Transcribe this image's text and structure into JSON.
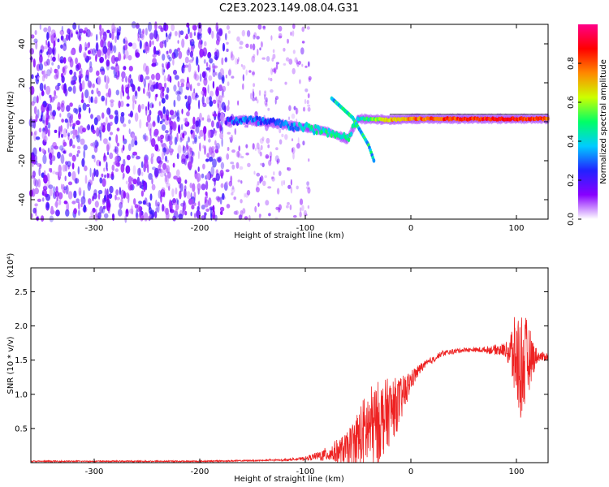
{
  "title": "C2E3.2023.149.08.04.G31",
  "colors": {
    "snr_line": "#ee2222",
    "frame": "#000000",
    "colormap": [
      "#ffffff",
      "#8800ff",
      "#2222ff",
      "#00ccff",
      "#00ff66",
      "#ccff00",
      "#ff8800",
      "#ff0000",
      "#ff0088"
    ]
  },
  "chart_data": [
    {
      "type": "heatmap",
      "xlabel": "Height of straight line (km)",
      "ylabel": "Frequency (Hz)",
      "xlim": [
        -360,
        130
      ],
      "ylim": [
        -50,
        50
      ],
      "xticks": [
        -300,
        -200,
        -100,
        0,
        100
      ],
      "yticks": [
        -40,
        -20,
        0,
        20,
        40
      ],
      "colorbar": {
        "label": "Normalized spectral amplitude",
        "range": [
          0,
          1
        ],
        "ticks": [
          0.0,
          0.2,
          0.4,
          0.6,
          0.8
        ]
      },
      "features": {
        "noise_region_km": [
          -360,
          -175
        ],
        "sparse_noise_km": [
          -175,
          -95
        ],
        "signal_track": [
          {
            "x": -175,
            "y": 0.0,
            "amp": 0.25
          },
          {
            "x": -160,
            "y": 1.0,
            "amp": 0.3
          },
          {
            "x": -140,
            "y": 0.0,
            "amp": 0.3
          },
          {
            "x": -120,
            "y": -1.5,
            "amp": 0.3
          },
          {
            "x": -100,
            "y": -3.0,
            "amp": 0.4
          },
          {
            "x": -80,
            "y": -5.0,
            "amp": 0.45
          },
          {
            "x": -60,
            "y": -9.0,
            "amp": 0.45
          },
          {
            "x": -50,
            "y": 1.5,
            "amp": 0.4
          },
          {
            "x": -20,
            "y": 1.0,
            "amp": 0.7
          },
          {
            "x": 0,
            "y": 1.5,
            "amp": 0.75
          },
          {
            "x": 50,
            "y": 1.5,
            "amp": 0.85
          },
          {
            "x": 100,
            "y": 1.5,
            "amp": 0.85
          },
          {
            "x": 130,
            "y": 1.5,
            "amp": 0.8
          }
        ],
        "diagonal_branch": [
          {
            "x": -75,
            "y": 12.0
          },
          {
            "x": -55,
            "y": 2.0
          },
          {
            "x": -40,
            "y": -12.0
          },
          {
            "x": -35,
            "y": -20.0
          }
        ]
      }
    },
    {
      "type": "line",
      "xlabel": "Height of straight line (km)",
      "ylabel": "SNR (10 * v/v)",
      "multiplier": "(x10⁴)",
      "xlim": [
        -360,
        130
      ],
      "ylim": [
        0,
        2.85
      ],
      "xticks": [
        -300,
        -200,
        -100,
        0,
        100
      ],
      "yticks": [
        0.5,
        1.0,
        1.5,
        2.0,
        2.5
      ],
      "series": [
        {
          "x": [
            -360,
            -300,
            -200,
            -150,
            -120,
            -100,
            -80,
            -60,
            -50,
            -40,
            -30,
            -20,
            -10,
            0,
            10,
            20,
            30,
            50,
            70,
            90,
            95,
            100,
            105,
            110,
            115,
            120,
            130
          ],
          "values": [
            0.02,
            0.02,
            0.02,
            0.03,
            0.04,
            0.06,
            0.12,
            0.2,
            0.35,
            0.5,
            0.6,
            0.75,
            0.9,
            1.2,
            1.4,
            1.5,
            1.6,
            1.65,
            1.65,
            1.65,
            1.6,
            1.5,
            1.4,
            1.5,
            1.55,
            1.55,
            1.55
          ],
          "noise": [
            0.0,
            0.0,
            0.0,
            0.0,
            0.01,
            0.02,
            0.1,
            0.25,
            0.45,
            0.6,
            0.6,
            0.5,
            0.35,
            0.15,
            0.06,
            0.05,
            0.04,
            0.03,
            0.04,
            0.1,
            0.4,
            0.7,
            0.85,
            0.6,
            0.3,
            0.08,
            0.06
          ]
        }
      ]
    }
  ]
}
